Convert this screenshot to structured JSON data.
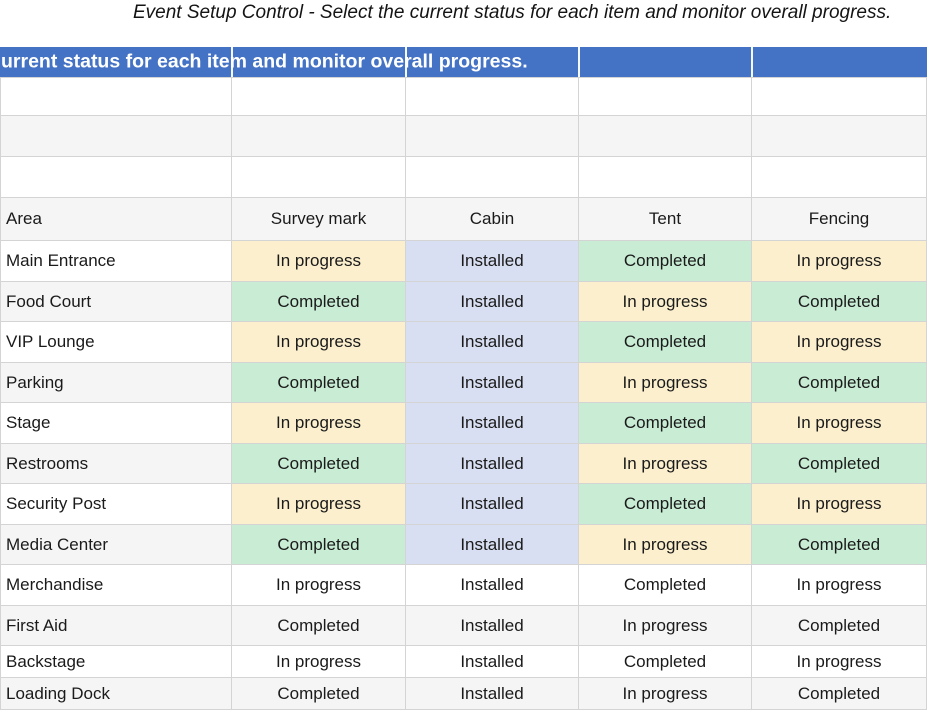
{
  "title": {
    "text": "Event Setup Control - Select the current status for each item and monitor overall progress."
  },
  "banner": {
    "text": "urrent status for each item and monitor overall progress.",
    "bg_color": "#4472C4",
    "text_color": "#FFFFFF"
  },
  "table": {
    "columns": [
      "Area",
      "Survey mark",
      "Cabin",
      "Tent",
      "Fencing"
    ],
    "rows": [
      {
        "area": "Main Entrance",
        "statuses": [
          "In progress",
          "Installed",
          "Completed",
          "In progress"
        ],
        "colored": true
      },
      {
        "area": "Food Court",
        "statuses": [
          "Completed",
          "Installed",
          "In progress",
          "Completed"
        ],
        "colored": true
      },
      {
        "area": "VIP Lounge",
        "statuses": [
          "In progress",
          "Installed",
          "Completed",
          "In progress"
        ],
        "colored": true
      },
      {
        "area": "Parking",
        "statuses": [
          "Completed",
          "Installed",
          "In progress",
          "Completed"
        ],
        "colored": true
      },
      {
        "area": "Stage",
        "statuses": [
          "In progress",
          "Installed",
          "Completed",
          "In progress"
        ],
        "colored": true
      },
      {
        "area": "Restrooms",
        "statuses": [
          "Completed",
          "Installed",
          "In progress",
          "Completed"
        ],
        "colored": true
      },
      {
        "area": "Security Post",
        "statuses": [
          "In progress",
          "Installed",
          "Completed",
          "In progress"
        ],
        "colored": true
      },
      {
        "area": "Media Center",
        "statuses": [
          "Completed",
          "Installed",
          "In progress",
          "Completed"
        ],
        "colored": true
      },
      {
        "area": "Merchandise",
        "statuses": [
          "In progress",
          "Installed",
          "Completed",
          "In progress"
        ],
        "colored": false
      },
      {
        "area": "First Aid",
        "statuses": [
          "Completed",
          "Installed",
          "In progress",
          "Completed"
        ],
        "colored": false
      },
      {
        "area": "Backstage",
        "statuses": [
          "In progress",
          "Installed",
          "Completed",
          "In progress"
        ],
        "colored": false
      },
      {
        "area": "Loading Dock",
        "statuses": [
          "Completed",
          "Installed",
          "In progress",
          "Completed"
        ],
        "colored": false
      }
    ]
  },
  "status_colors": {
    "In progress": "#FBEFCE",
    "Installed": "#D9DFF2",
    "Completed": "#C8ECD4"
  },
  "band_color": "#F5F5F5"
}
